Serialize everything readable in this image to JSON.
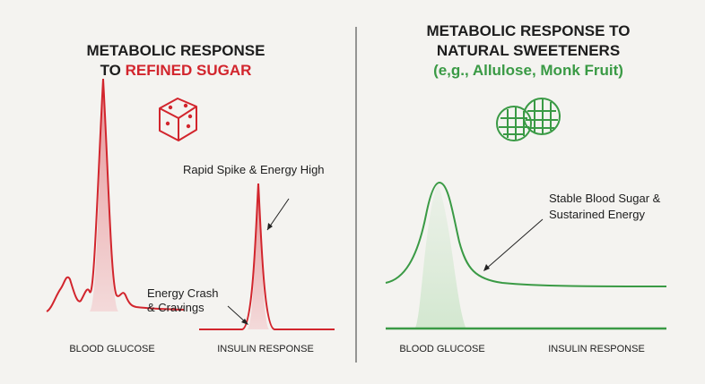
{
  "left_panel": {
    "title_line1": "METABOLIC RESPONSE",
    "title_line2_prefix": "TO",
    "title_line2_highlight": "REFINED SUGAR",
    "spike_label": "Rapid Spike & Energy High",
    "crash_label_line1": "Energy Crash",
    "crash_label_line2": "& Cravings",
    "axis_label_left": "BLOOD GLUCOSE",
    "axis_label_right": "INSULIN RESPONSE"
  },
  "right_panel": {
    "title_line1": "METABOLIC RESPONSE TO",
    "title_line2": "NATURAL SWEETENERS",
    "subtitle": "(e,g., Allulose, Monk Fruit)",
    "stable_label_line1": "Stable Blood Sugar &",
    "stable_label_line2": "Sustarined Energy",
    "axis_label_left": "BLOOD GLUCOSE",
    "axis_label_right": "INSULIN RESPONSE"
  }
}
